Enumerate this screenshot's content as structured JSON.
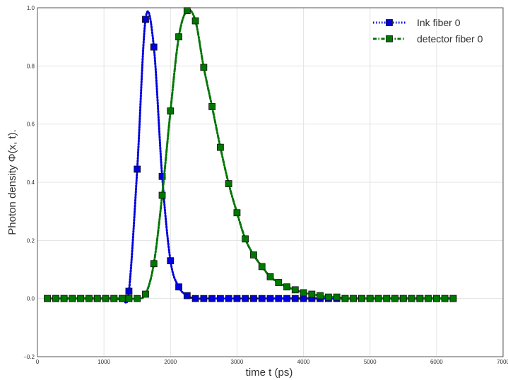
{
  "chart_data": {
    "type": "line",
    "xlabel": "time t (ps)",
    "ylabel": "Photon density Φ(x, t).",
    "xlim": [
      0,
      7000
    ],
    "ylim": [
      -0.2,
      1.0
    ],
    "x_ticks": [
      "0",
      "1000",
      "2000",
      "3000",
      "4000",
      "5000",
      "6000",
      "7000"
    ],
    "y_ticks": [
      "−0.2",
      "0.0",
      "0.2",
      "0.4",
      "0.6",
      "0.8",
      "1.0"
    ],
    "grid": true,
    "legend_position": "top-right",
    "series": [
      {
        "name": "Ink fiber 0",
        "color": "#0000dd",
        "marker": "square",
        "line_style": "dotted",
        "x": [
          150,
          275,
          400,
          525,
          650,
          775,
          900,
          1025,
          1150,
          1275,
          1375,
          1500,
          1625,
          1750,
          1875,
          2000,
          2125,
          2250,
          2375,
          2500,
          2625,
          2750,
          2875,
          3000,
          3125,
          3250,
          3375,
          3500,
          3625,
          3750,
          3875,
          4000,
          4125,
          4250,
          4375,
          4500,
          4625,
          4750,
          4875,
          5000,
          5125,
          5250,
          5375,
          5500,
          5625,
          5750,
          5875,
          6000,
          6125,
          6250
        ],
        "y": [
          0.0,
          0.0,
          0.0,
          0.0,
          0.0,
          0.0,
          0.0,
          0.0,
          0.0,
          0.0,
          0.025,
          0.445,
          0.96,
          0.865,
          0.42,
          0.13,
          0.04,
          0.01,
          0.0,
          0.0,
          0.0,
          0.0,
          0.0,
          0.0,
          0.0,
          0.0,
          0.0,
          0.0,
          0.0,
          0.0,
          0.0,
          0.0,
          0.0,
          0.0,
          0.0,
          0.0,
          0.0,
          0.0,
          0.0,
          0.0,
          0.0,
          0.0,
          0.0,
          0.0,
          0.0,
          0.0,
          0.0,
          0.0,
          0.0,
          0.0
        ]
      },
      {
        "name": "detector fiber 0",
        "color": "#007700",
        "marker": "square",
        "line_style": "dash-dot",
        "x": [
          150,
          275,
          400,
          525,
          650,
          775,
          900,
          1025,
          1150,
          1275,
          1375,
          1500,
          1625,
          1750,
          1875,
          2000,
          2125,
          2250,
          2375,
          2500,
          2625,
          2750,
          2875,
          3000,
          3125,
          3250,
          3375,
          3500,
          3625,
          3750,
          3875,
          4000,
          4125,
          4250,
          4375,
          4500,
          4625,
          4750,
          4875,
          5000,
          5125,
          5250,
          5375,
          5500,
          5625,
          5750,
          5875,
          6000,
          6125,
          6250
        ],
        "y": [
          0.0,
          0.0,
          0.0,
          0.0,
          0.0,
          0.0,
          0.0,
          0.0,
          0.0,
          0.0,
          0.0,
          0.0,
          0.015,
          0.12,
          0.355,
          0.645,
          0.9,
          0.99,
          0.955,
          0.795,
          0.66,
          0.52,
          0.395,
          0.295,
          0.205,
          0.15,
          0.11,
          0.075,
          0.055,
          0.04,
          0.03,
          0.02,
          0.015,
          0.01,
          0.005,
          0.005,
          0.0,
          0.0,
          0.0,
          0.0,
          0.0,
          0.0,
          0.0,
          0.0,
          0.0,
          0.0,
          0.0,
          0.0,
          0.0,
          0.0
        ]
      }
    ]
  }
}
